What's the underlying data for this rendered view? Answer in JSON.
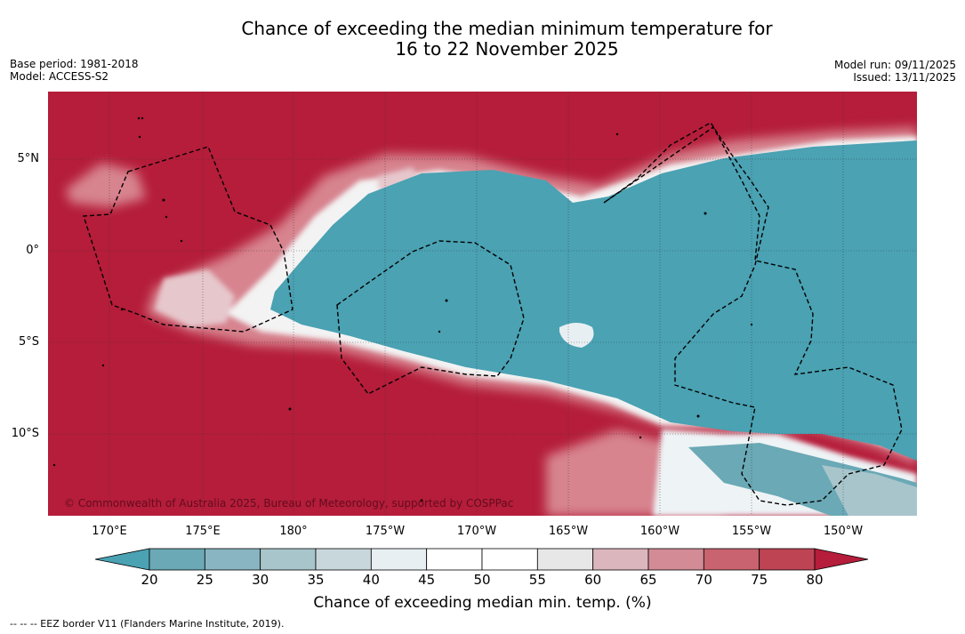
{
  "title_line1": "Chance of exceeding the median minimum temperature for",
  "title_line2": "16 to 22 November 2025",
  "base_period": "Base period: 1981-2018",
  "model": "Model: ACCESS-S2",
  "model_run": "Model run: 09/11/2025",
  "issued": "Issued: 13/11/2025",
  "credit": "© Commonwealth of Australia 2025, Bureau of Meteorology, supported by COSPPac",
  "lon_labels": [
    "170°E",
    "175°E",
    "180°",
    "175°W",
    "170°W",
    "165°W",
    "160°W",
    "155°W",
    "150°W"
  ],
  "lat_labels": [
    "5°N",
    "0°",
    "5°S",
    "10°S"
  ],
  "colorbar": {
    "title": "Chance of exceeding median min. temp. (%)",
    "ticks": [
      "20",
      "25",
      "30",
      "35",
      "40",
      "45",
      "50",
      "55",
      "60",
      "65",
      "70",
      "75",
      "80"
    ],
    "low_color": "#4aa2b3",
    "high_color": "#b51d3a",
    "colors": [
      "#6aa9b5",
      "#88b5c1",
      "#a9c5cc",
      "#c8d7dc",
      "#e8eff2",
      "#ffffff",
      "#ffffff",
      "#e7e7e7",
      "#dcb6bd",
      "#d38b95",
      "#c8636f",
      "#be4454"
    ]
  },
  "eez_note": "-- -- -- EEZ border V11 (Flanders Marine Institute, 2019)."
}
